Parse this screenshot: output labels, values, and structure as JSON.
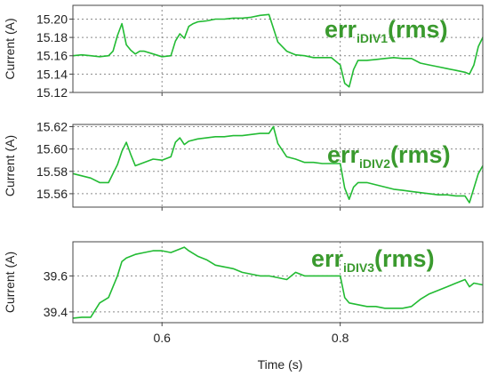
{
  "chart_data": [
    {
      "type": "line",
      "ylabel": "Current (A)",
      "xlabel": "",
      "xlim": [
        0.5,
        0.96
      ],
      "ylim": [
        15.12,
        15.215
      ],
      "x_ticks": [
        0.6,
        0.8
      ],
      "y_ticks": [
        15.12,
        15.14,
        15.16,
        15.18,
        15.2
      ],
      "y_tick_labels": [
        "15.12",
        "15.14",
        "15.16",
        "15.18",
        "15.20"
      ],
      "x_tick_labels_shown": false,
      "grid": true,
      "annotation": {
        "main": "err",
        "sub": "iDIV1",
        "tail": "(rms)"
      },
      "color": "#22bb33",
      "series": [
        {
          "x": [
            0.5,
            0.51,
            0.52,
            0.53,
            0.54,
            0.545,
            0.55,
            0.555,
            0.56,
            0.565,
            0.57,
            0.575,
            0.58,
            0.59,
            0.6,
            0.61,
            0.615,
            0.62,
            0.625,
            0.63,
            0.635,
            0.64,
            0.65,
            0.66,
            0.67,
            0.68,
            0.69,
            0.7,
            0.71,
            0.72,
            0.725,
            0.73,
            0.74,
            0.75,
            0.76,
            0.77,
            0.78,
            0.79,
            0.8,
            0.805,
            0.81,
            0.815,
            0.82,
            0.83,
            0.84,
            0.85,
            0.86,
            0.87,
            0.88,
            0.89,
            0.9,
            0.91,
            0.92,
            0.93,
            0.94,
            0.945,
            0.95,
            0.955,
            0.96
          ],
          "y": [
            15.16,
            15.161,
            15.16,
            15.159,
            15.16,
            15.165,
            15.182,
            15.195,
            15.172,
            15.166,
            15.162,
            15.165,
            15.165,
            15.162,
            15.159,
            15.16,
            15.176,
            15.184,
            15.179,
            15.192,
            15.195,
            15.197,
            15.198,
            15.2,
            15.2,
            15.201,
            15.201,
            15.202,
            15.204,
            15.205,
            15.19,
            15.175,
            15.165,
            15.161,
            15.16,
            15.158,
            15.158,
            15.158,
            15.15,
            15.13,
            15.126,
            15.145,
            15.155,
            15.155,
            15.156,
            15.157,
            15.158,
            15.157,
            15.157,
            15.152,
            15.15,
            15.148,
            15.146,
            15.144,
            15.142,
            15.14,
            15.15,
            15.17,
            15.18
          ]
        }
      ]
    },
    {
      "type": "line",
      "ylabel": "Current (A)",
      "xlabel": "",
      "xlim": [
        0.5,
        0.96
      ],
      "ylim": [
        15.548,
        15.622
      ],
      "x_ticks": [
        0.6,
        0.8
      ],
      "y_ticks": [
        15.56,
        15.58,
        15.6,
        15.62
      ],
      "y_tick_labels": [
        "15.56",
        "15.58",
        "15.60",
        "15.62"
      ],
      "x_tick_labels_shown": false,
      "grid": true,
      "annotation": {
        "main": "err",
        "sub": "iDIV2",
        "tail": "(rms)"
      },
      "color": "#22bb33",
      "series": [
        {
          "x": [
            0.5,
            0.51,
            0.52,
            0.53,
            0.54,
            0.55,
            0.555,
            0.56,
            0.565,
            0.57,
            0.58,
            0.59,
            0.6,
            0.61,
            0.615,
            0.62,
            0.625,
            0.63,
            0.64,
            0.65,
            0.66,
            0.67,
            0.68,
            0.69,
            0.7,
            0.71,
            0.72,
            0.725,
            0.73,
            0.74,
            0.75,
            0.76,
            0.77,
            0.78,
            0.79,
            0.8,
            0.805,
            0.81,
            0.815,
            0.82,
            0.83,
            0.84,
            0.85,
            0.86,
            0.87,
            0.88,
            0.89,
            0.9,
            0.91,
            0.92,
            0.93,
            0.94,
            0.945,
            0.95,
            0.955,
            0.96
          ],
          "y": [
            15.578,
            15.576,
            15.574,
            15.57,
            15.57,
            15.586,
            15.598,
            15.606,
            15.595,
            15.585,
            15.588,
            15.591,
            15.59,
            15.593,
            15.606,
            15.61,
            15.604,
            15.607,
            15.609,
            15.61,
            15.611,
            15.611,
            15.612,
            15.612,
            15.613,
            15.614,
            15.614,
            15.62,
            15.605,
            15.593,
            15.591,
            15.588,
            15.588,
            15.587,
            15.587,
            15.587,
            15.565,
            15.555,
            15.566,
            15.57,
            15.57,
            15.568,
            15.566,
            15.564,
            15.563,
            15.562,
            15.561,
            15.56,
            15.559,
            15.559,
            15.558,
            15.558,
            15.552,
            15.565,
            15.578,
            15.585
          ]
        }
      ]
    },
    {
      "type": "line",
      "ylabel": "Current (A)",
      "xlabel": "Time (s)",
      "xlim": [
        0.5,
        0.96
      ],
      "ylim": [
        39.34,
        39.79
      ],
      "x_ticks": [
        0.6,
        0.8
      ],
      "x_tick_labels": [
        "0.6",
        "0.8"
      ],
      "y_ticks": [
        39.4,
        39.6
      ],
      "y_tick_labels": [
        "39.4",
        "39.6"
      ],
      "x_tick_labels_shown": true,
      "grid": true,
      "annotation": {
        "main": "err",
        "sub": "iDIV3",
        "tail": "(rms)"
      },
      "color": "#22bb33",
      "series": [
        {
          "x": [
            0.5,
            0.51,
            0.52,
            0.53,
            0.54,
            0.55,
            0.555,
            0.56,
            0.57,
            0.58,
            0.59,
            0.6,
            0.61,
            0.62,
            0.625,
            0.63,
            0.64,
            0.65,
            0.66,
            0.67,
            0.68,
            0.69,
            0.7,
            0.71,
            0.72,
            0.73,
            0.74,
            0.75,
            0.76,
            0.77,
            0.78,
            0.79,
            0.8,
            0.805,
            0.81,
            0.82,
            0.83,
            0.84,
            0.85,
            0.86,
            0.87,
            0.88,
            0.89,
            0.9,
            0.91,
            0.92,
            0.93,
            0.94,
            0.945,
            0.95,
            0.96
          ],
          "y": [
            39.365,
            39.37,
            39.37,
            39.45,
            39.48,
            39.6,
            39.68,
            39.7,
            39.72,
            39.73,
            39.74,
            39.74,
            39.73,
            39.75,
            39.76,
            39.74,
            39.71,
            39.69,
            39.66,
            39.65,
            39.64,
            39.62,
            39.61,
            39.6,
            39.6,
            39.59,
            39.58,
            39.62,
            39.6,
            39.6,
            39.6,
            39.6,
            39.6,
            39.48,
            39.45,
            39.44,
            39.43,
            39.43,
            39.42,
            39.42,
            39.42,
            39.43,
            39.47,
            39.5,
            39.52,
            39.54,
            39.56,
            39.58,
            39.54,
            39.56,
            39.55
          ]
        }
      ]
    }
  ]
}
